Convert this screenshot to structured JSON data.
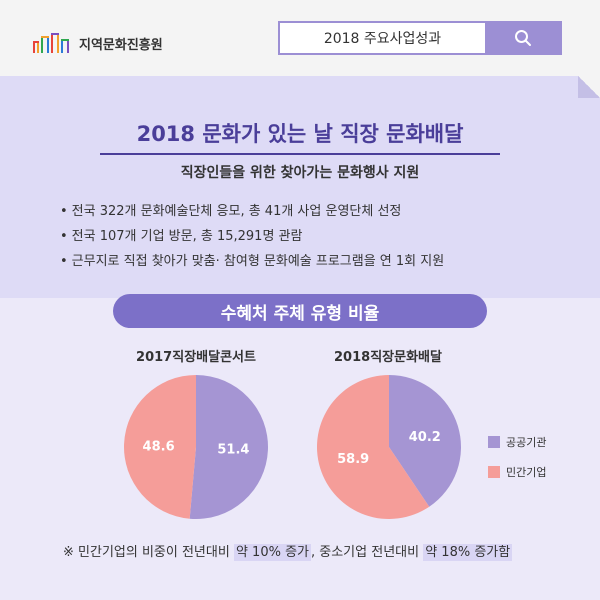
{
  "header": {
    "logo_text": "지역문화진흥원",
    "search_value": "2018 주요사업성과",
    "search_icon": "search-icon"
  },
  "main": {
    "title": "2018 문화가 있는 날 직장 문화배달",
    "subtitle": "직장인들을 위한 찾아가는 문화행사 지원",
    "bullets": [
      "전국 322개 문화예술단체 응모, 총 41개 사업 운영단체 선정",
      "전국 107개 기업 방문, 총 15,291명 관람",
      "근무지로 직접 찾아가 맞춤· 참여형 문화예술 프로그램을 연 1회 지원"
    ],
    "section_label": "수혜처 주체 유형 비율"
  },
  "colors": {
    "public": "#a595d3",
    "private": "#f59d99",
    "accent": "#7c70c8",
    "title": "#4a3e99"
  },
  "chart_data": [
    {
      "type": "pie",
      "title": "2017직장배달콘서트",
      "slices": [
        {
          "label": "공공기관",
          "value": 51.4
        },
        {
          "label": "민간기업",
          "value": 48.6
        }
      ]
    },
    {
      "type": "pie",
      "title": "2018직장문화배달",
      "slices": [
        {
          "label": "공공기관",
          "value": 40.2
        },
        {
          "label": "민간기업",
          "value": 58.9
        }
      ]
    }
  ],
  "legend": [
    "공공기관",
    "민간기업"
  ],
  "footnote": {
    "part1": "※ 민간기업의 비중이 전년대비 ",
    "hl1": "약 10% 증가",
    "part2": ", 중소기업 전년대비 ",
    "hl2": "약 18% 증가함"
  }
}
